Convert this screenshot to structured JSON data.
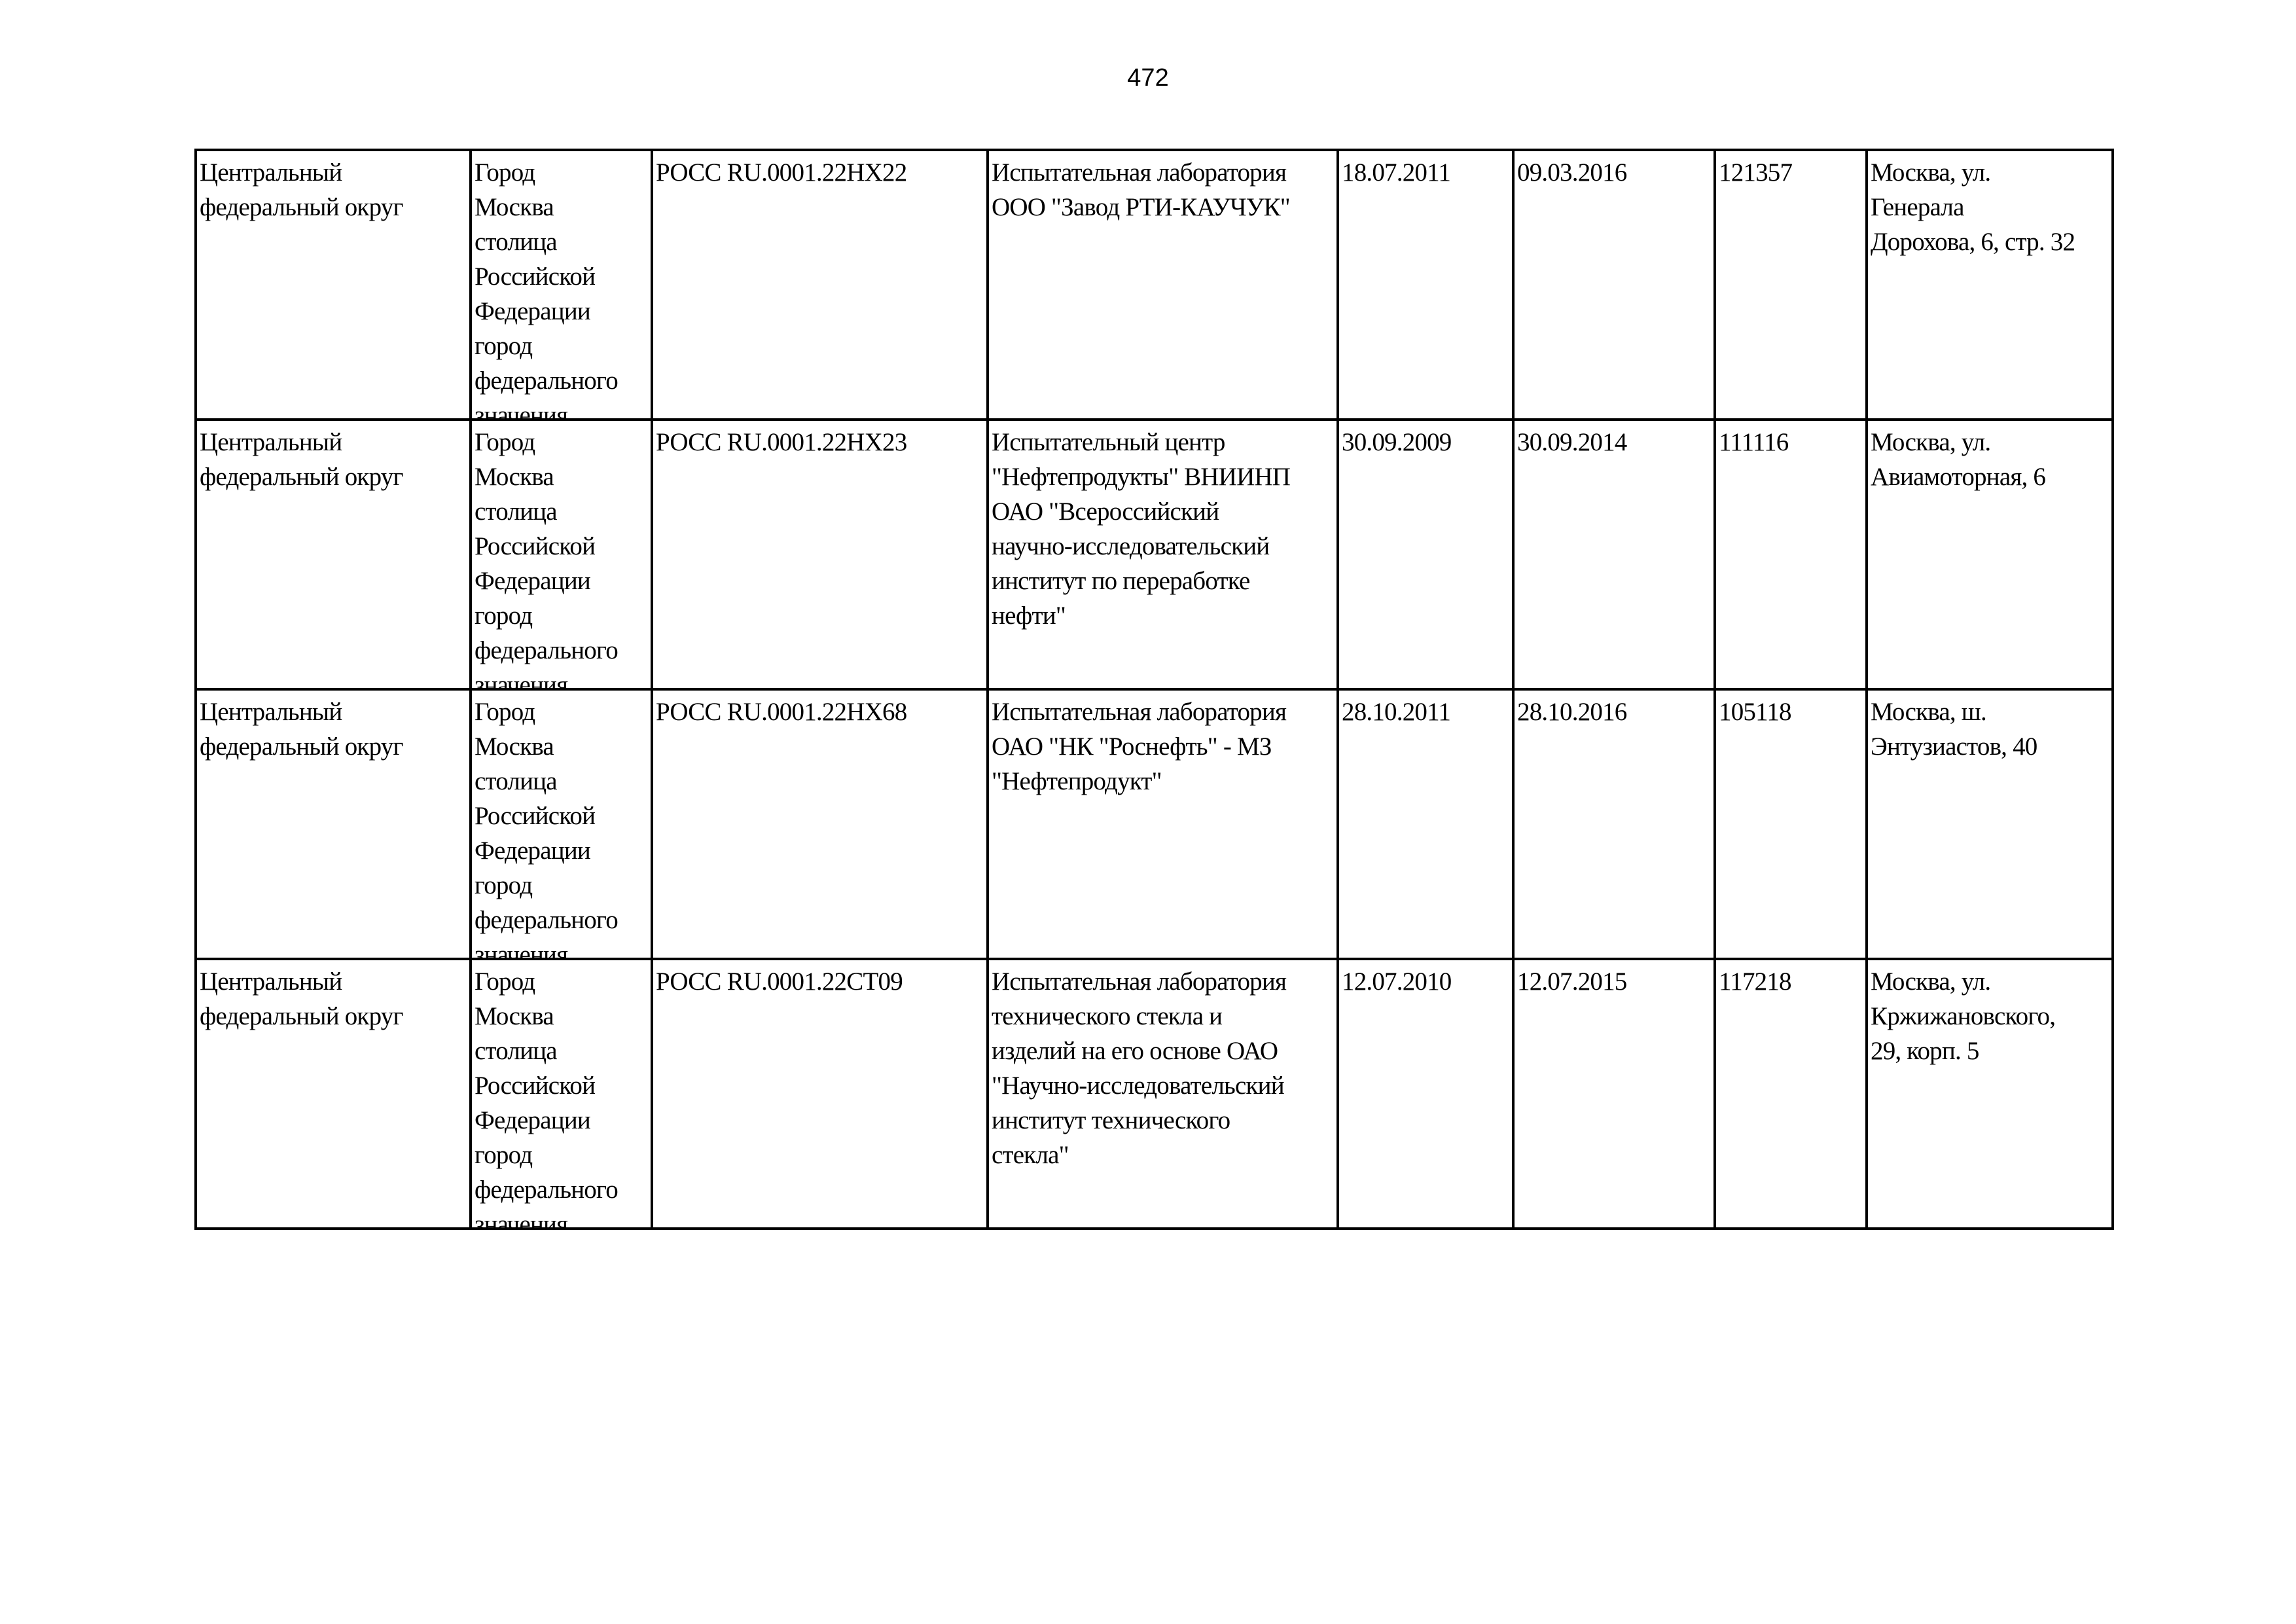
{
  "page_number": "472",
  "rows": [
    {
      "district": "Центральный\nфедеральный округ",
      "region": "Город\nМосква\nстолица\nРоссийской\nФедерации\nгород\nфедерального\nзначения",
      "cert": "РОСС RU.0001.22НХ22",
      "name": "Испытательная лаборатория\nООО \"Завод РТИ-КАУЧУК\"",
      "date_from": "18.07.2011",
      "date_to": "09.03.2016",
      "postcode": "121357",
      "address": "Москва, ул.\nГенерала\nДорохова, 6, стр. 32"
    },
    {
      "district": "Центральный\nфедеральный округ",
      "region": "Город\nМосква\nстолица\nРоссийской\nФедерации\nгород\nфедерального\nзначения",
      "cert": "РОСС RU.0001.22НХ23",
      "name": "Испытательный центр\n\"Нефтепродукты\" ВНИИНП\nОАО \"Всероссийский\nнаучно-исследовательский\nинститут по переработке\nнефти\"",
      "date_from": "30.09.2009",
      "date_to": "30.09.2014",
      "postcode": "111116",
      "address": "Москва, ул.\nАвиамоторная, 6"
    },
    {
      "district": "Центральный\nфедеральный округ",
      "region": "Город\nМосква\nстолица\nРоссийской\nФедерации\nгород\nфедерального\nзначения",
      "cert": "РОСС RU.0001.22НХ68",
      "name": "Испытательная лаборатория\nОАО \"НК \"Роснефть\" - МЗ\n\"Нефтепродукт\"",
      "date_from": "28.10.2011",
      "date_to": "28.10.2016",
      "postcode": "105118",
      "address": "Москва, ш.\nЭнтузиастов, 40"
    },
    {
      "district": "Центральный\nфедеральный округ",
      "region": "Город\nМосква\nстолица\nРоссийской\nФедерации\nгород\nфедерального\nзначения",
      "cert": "РОСС RU.0001.22СТ09",
      "name": "Испытательная лаборатория\nтехнического стекла и\nизделий на его основе ОАО\n\"Научно-исследовательский\nинститут технического\nстекла\"",
      "date_from": "12.07.2010",
      "date_to": "12.07.2015",
      "postcode": "117218",
      "address": "Москва, ул.\nКржижановского,\n29, корп. 5"
    }
  ]
}
